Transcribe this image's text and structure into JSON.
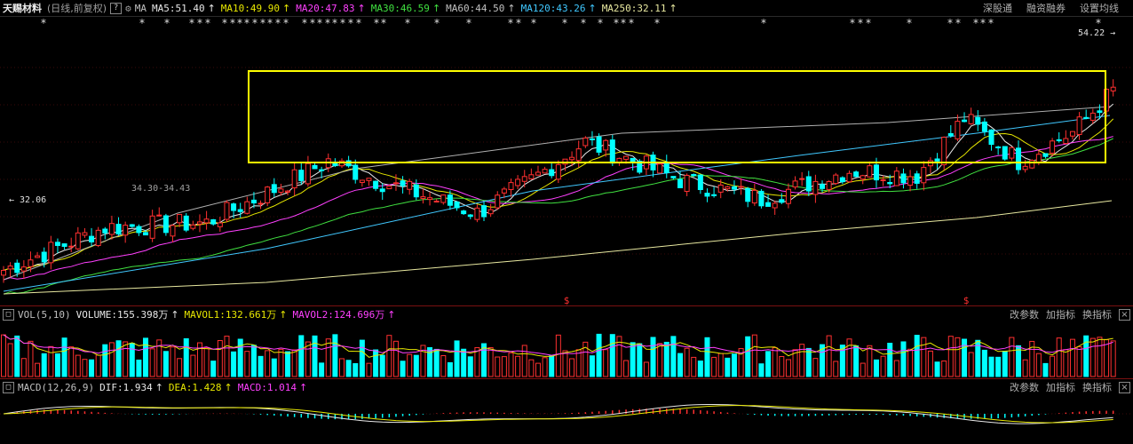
{
  "header": {
    "stock_name": "天赐材料",
    "period": "(日线,前复权)",
    "help": "?",
    "ma_label": "MA",
    "ma_values": [
      {
        "text": "MA5:51.40",
        "color": "#e8e8e8"
      },
      {
        "text": "MA10:49.90",
        "color": "#e8e800"
      },
      {
        "text": "MA20:47.83",
        "color": "#ff40ff"
      },
      {
        "text": "MA30:46.59",
        "color": "#40e040"
      },
      {
        "text": "MA60:44.50",
        "color": "#c0c0c0"
      },
      {
        "text": "MA120:43.26",
        "color": "#40c8ff"
      },
      {
        "text": "MA250:32.11",
        "color": "#e8e8a0"
      }
    ],
    "arrow": "↑",
    "links": [
      "深股通",
      "融资融券",
      "设置均线"
    ]
  },
  "price_chart": {
    "high_label": "54.22",
    "low_label": "32.06",
    "range_label": "34.30-34.43",
    "star_glyph": "*",
    "dollar_glyph": "$",
    "colors": {
      "up": "#ff3030",
      "down": "#00ffff",
      "box": "#ffff00"
    }
  },
  "volume_panel": {
    "indicator": "VOL(5,10)",
    "values": [
      {
        "text": "VOLUME:155.398万",
        "color": "#e8e8e8"
      },
      {
        "text": "MAVOL1:132.661万",
        "color": "#e8e800"
      },
      {
        "text": "MAVOL2:124.696万",
        "color": "#ff40ff"
      }
    ],
    "links": [
      "改参数",
      "加指标",
      "换指标"
    ],
    "close": "×"
  },
  "macd_panel": {
    "indicator": "MACD(12,26,9)",
    "values": [
      {
        "text": "DIF:1.934",
        "color": "#e8e8e8"
      },
      {
        "text": "DEA:1.428",
        "color": "#e8e800"
      },
      {
        "text": "MACD:1.014",
        "color": "#ff40ff"
      }
    ],
    "links": [
      "改参数",
      "加指标",
      "换指标"
    ],
    "close": "×"
  }
}
